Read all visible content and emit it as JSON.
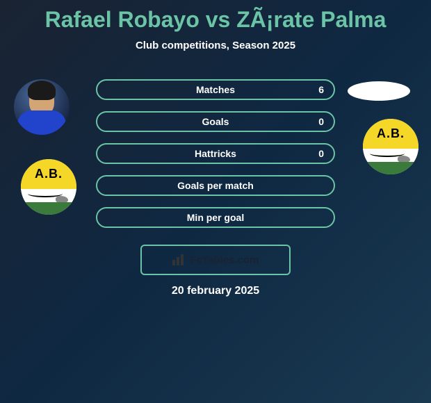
{
  "title": "Rafael Robayo vs ZÃ¡rate Palma",
  "subtitle": "Club competitions, Season 2025",
  "stats": [
    {
      "label": "Matches",
      "value": "6"
    },
    {
      "label": "Goals",
      "value": "0"
    },
    {
      "label": "Hattricks",
      "value": "0"
    },
    {
      "label": "Goals per match",
      "value": ""
    },
    {
      "label": "Min per goal",
      "value": ""
    }
  ],
  "brand": "FcTables.com",
  "date": "20 february 2025",
  "badge_abbr": "A.B.",
  "colors": {
    "accent": "#6bc4a6",
    "text": "#ffffff",
    "bg_start": "#1a2332",
    "bg_end": "#1a3a52",
    "badge_yellow": "#f5d827",
    "badge_green": "#3a7a3a"
  }
}
